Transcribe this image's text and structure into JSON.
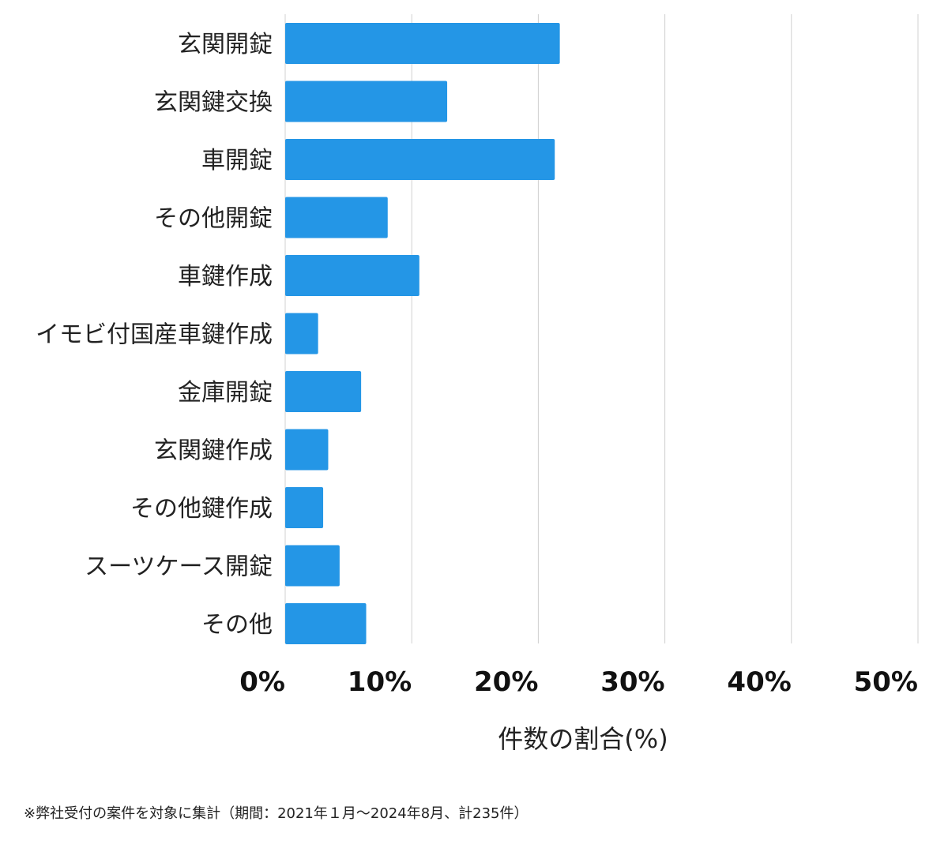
{
  "chart_data": {
    "type": "bar",
    "orientation": "horizontal",
    "categories": [
      "玄関開錠",
      "玄関鍵交換",
      "車開錠",
      "その他開錠",
      "車鍵作成",
      "イモビ付国産車鍵作成",
      "金庫開錠",
      "玄関鍵作成",
      "その他鍵作成",
      "スーツケース開錠",
      "その他"
    ],
    "values": [
      21.7,
      12.8,
      21.3,
      8.1,
      10.6,
      2.6,
      6.0,
      3.4,
      3.0,
      4.3,
      6.4
    ],
    "xlabel": "件数の割合(%)",
    "xlim": [
      0,
      50
    ],
    "xticks": [
      "0%",
      "10%",
      "20%",
      "30%",
      "40%",
      "50%"
    ],
    "grid": true,
    "bar_color": "#2496e6",
    "grid_color": "#d0d0d0"
  },
  "footnote": "※弊社受付の案件を対象に集計（期間：2021年１月〜2024年8月、計235件）"
}
